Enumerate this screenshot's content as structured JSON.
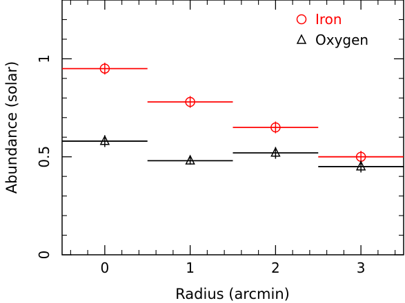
{
  "chart_data": {
    "type": "scatter",
    "title": "",
    "xlabel": "Radius (arcmin)",
    "ylabel": "Abundance (solar)",
    "xlim": [
      -0.5,
      3.5
    ],
    "ylim": [
      0,
      1.3
    ],
    "xticks": [
      0,
      1,
      2,
      3
    ],
    "xtick_labels": [
      "0",
      "1",
      "2",
      "3"
    ],
    "yticks": [
      0,
      0.5,
      1
    ],
    "ytick_labels": [
      "0",
      "0.5",
      "1"
    ],
    "grid": false,
    "legend_position": "top-right",
    "series": [
      {
        "name": "Iron",
        "marker": "circle",
        "color": "#ff0000",
        "x": [
          0,
          1,
          2,
          3
        ],
        "y": [
          0.95,
          0.78,
          0.65,
          0.5
        ],
        "x_err": [
          0.5,
          0.5,
          0.5,
          0.5
        ],
        "y_err": [
          0.03,
          0.03,
          0.03,
          0.03
        ]
      },
      {
        "name": "Oxygen",
        "marker": "triangle",
        "color": "#000000",
        "x": [
          0,
          1,
          2,
          3
        ],
        "y": [
          0.58,
          0.48,
          0.52,
          0.45
        ],
        "x_err": [
          0.5,
          0.5,
          0.5,
          0.5
        ],
        "y_err": [
          0.03,
          0.02,
          0.03,
          0.03
        ]
      }
    ]
  }
}
